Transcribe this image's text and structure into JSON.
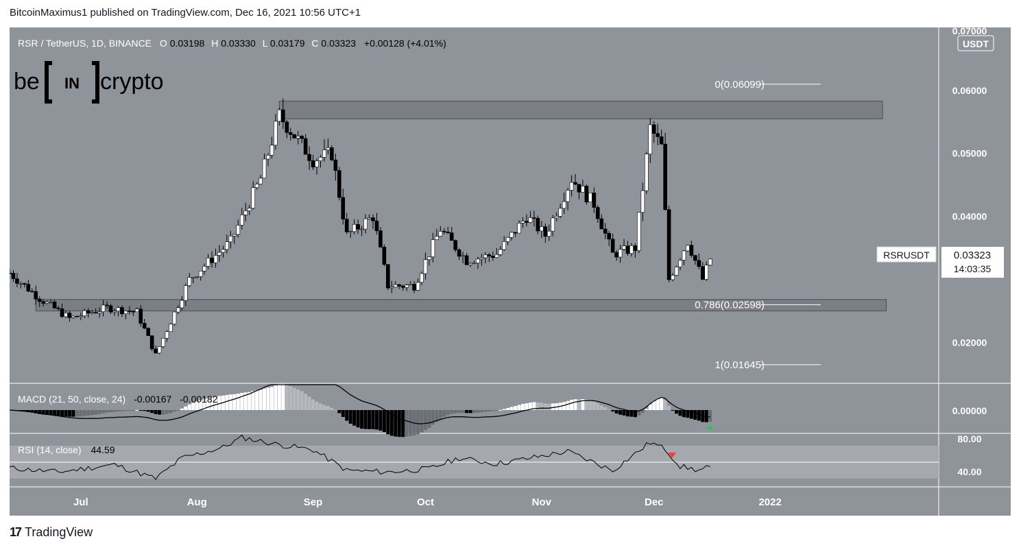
{
  "header": {
    "publish_line": "BitcoinMaximus1 published on TradingView.com, Dec 16, 2021 10:56 UTC+1"
  },
  "symbol_bar": {
    "title": "RSR / TetherUS, 1D, BINANCE",
    "o_label": "O",
    "o_value": "0.03198",
    "h_label": "H",
    "h_value": "0.03330",
    "l_label": "L",
    "l_value": "0.03179",
    "c_label": "C",
    "c_value": "0.03323",
    "change": "+0.00128 (+4.01%)"
  },
  "watermark": {
    "left": "be",
    "mid": "IN",
    "right": "crypto"
  },
  "price_axis": {
    "unit": "USDT",
    "top_partial": "0.07000",
    "ticks": [
      "0.06000",
      "0.05000",
      "0.04000",
      "0.02000"
    ]
  },
  "last_price": {
    "symbol": "RSRUSDT",
    "price": "0.03323",
    "countdown": "14:03:35"
  },
  "fib_labels": {
    "f0": "0(0.06099)",
    "f786": "0.786(0.02598)",
    "f1": "1(0.01645)"
  },
  "macd": {
    "label": "MACD (21, 50, close, 24)",
    "v1": "-0.00167",
    "v2": "-0.00182",
    "axis_tick": "0.00000"
  },
  "rsi": {
    "label": "RSI (14, close)",
    "value": "44.59",
    "axis_ticks": [
      "80.00",
      "40.00"
    ]
  },
  "time_axis": [
    "Jul",
    "Aug",
    "Sep",
    "Oct",
    "Nov",
    "Dec",
    "2022"
  ],
  "footer": {
    "brand": "TradingView"
  },
  "colors": {
    "background": "#8f939a",
    "candle_up": "#ffffff",
    "candle_down": "#000000",
    "zone_fill": "#7b7e84",
    "rsi_band": "#a5a8ae",
    "signal_up": "#26c25a",
    "signal_down": "#ff3b3b"
  },
  "chart_data": {
    "type": "candlestick",
    "title": "RSR / TetherUS, 1D, BINANCE",
    "y_unit": "USDT",
    "ylim": [
      0.0135,
      0.07
    ],
    "x_range": [
      "2021-06-12",
      "2022-02-15"
    ],
    "horizontal_zones": [
      {
        "from": 0.0555,
        "to": 0.0583,
        "start": "2021-08-23",
        "end": "2022-01-31"
      },
      {
        "from": 0.025,
        "to": 0.0268,
        "start": "2021-06-19",
        "end": "2022-02-01"
      }
    ],
    "fibonacci_levels": [
      {
        "ratio": 0,
        "value": 0.06099
      },
      {
        "ratio": 0.786,
        "value": 0.02598
      },
      {
        "ratio": 1,
        "value": 0.01645
      }
    ],
    "price_anchors": [
      {
        "date": "2021-06-12",
        "close": 0.031
      },
      {
        "date": "2021-06-20",
        "close": 0.027
      },
      {
        "date": "2021-06-28",
        "close": 0.0238
      },
      {
        "date": "2021-07-08",
        "close": 0.0255
      },
      {
        "date": "2021-07-16",
        "close": 0.0248
      },
      {
        "date": "2021-07-21",
        "close": 0.018
      },
      {
        "date": "2021-07-30",
        "close": 0.03
      },
      {
        "date": "2021-08-10",
        "close": 0.036
      },
      {
        "date": "2021-08-18",
        "close": 0.046
      },
      {
        "date": "2021-08-23",
        "close": 0.056
      },
      {
        "date": "2021-09-01",
        "close": 0.049
      },
      {
        "date": "2021-09-06",
        "close": 0.05
      },
      {
        "date": "2021-09-10",
        "close": 0.037
      },
      {
        "date": "2021-09-17",
        "close": 0.04
      },
      {
        "date": "2021-09-21",
        "close": 0.029
      },
      {
        "date": "2021-09-28",
        "close": 0.029
      },
      {
        "date": "2021-10-05",
        "close": 0.038
      },
      {
        "date": "2021-10-12",
        "close": 0.033
      },
      {
        "date": "2021-10-20",
        "close": 0.034
      },
      {
        "date": "2021-10-28",
        "close": 0.04
      },
      {
        "date": "2021-11-02",
        "close": 0.037
      },
      {
        "date": "2021-11-09",
        "close": 0.046
      },
      {
        "date": "2021-11-15",
        "close": 0.042
      },
      {
        "date": "2021-11-20",
        "close": 0.034
      },
      {
        "date": "2021-11-26",
        "close": 0.035
      },
      {
        "date": "2021-11-30",
        "close": 0.054
      },
      {
        "date": "2021-12-03",
        "close": 0.051
      },
      {
        "date": "2021-12-05",
        "close": 0.03
      },
      {
        "date": "2021-12-10",
        "close": 0.036
      },
      {
        "date": "2021-12-14",
        "close": 0.03
      },
      {
        "date": "2021-12-16",
        "close": 0.03323
      }
    ],
    "macd_panel": {
      "params": "21, 50, close, 24",
      "values": [
        -0.00167,
        -0.00182
      ],
      "ylim": [
        -0.01,
        0.01
      ],
      "marker": {
        "date": "2021-12-16",
        "type": "up-arrow"
      }
    },
    "rsi_panel": {
      "params": "14, close",
      "value": 44.59,
      "band": [
        30,
        70
      ],
      "mid": 50,
      "ylim": [
        20,
        85
      ],
      "marker": {
        "date": "2021-12-04",
        "type": "down-arrow"
      },
      "anchors": [
        {
          "date": "2021-06-12",
          "value": 43
        },
        {
          "date": "2021-06-25",
          "value": 38
        },
        {
          "date": "2021-07-10",
          "value": 47
        },
        {
          "date": "2021-07-21",
          "value": 30
        },
        {
          "date": "2021-07-28",
          "value": 55
        },
        {
          "date": "2021-08-08",
          "value": 68
        },
        {
          "date": "2021-08-13",
          "value": 80
        },
        {
          "date": "2021-08-22",
          "value": 72
        },
        {
          "date": "2021-09-01",
          "value": 65
        },
        {
          "date": "2021-09-10",
          "value": 40
        },
        {
          "date": "2021-09-21",
          "value": 38
        },
        {
          "date": "2021-10-02",
          "value": 42
        },
        {
          "date": "2021-10-10",
          "value": 55
        },
        {
          "date": "2021-10-20",
          "value": 48
        },
        {
          "date": "2021-11-08",
          "value": 63
        },
        {
          "date": "2021-11-20",
          "value": 40
        },
        {
          "date": "2021-11-30",
          "value": 74
        },
        {
          "date": "2021-12-04",
          "value": 66
        },
        {
          "date": "2021-12-08",
          "value": 45
        },
        {
          "date": "2021-12-13",
          "value": 40
        },
        {
          "date": "2021-12-16",
          "value": 44.59
        }
      ]
    },
    "x_tick_labels": [
      "Jul",
      "Aug",
      "Sep",
      "Oct",
      "Nov",
      "Dec",
      "2022"
    ],
    "y_tick_labels": [
      "0.07000",
      "0.06000",
      "0.05000",
      "0.04000",
      "0.02000"
    ]
  }
}
